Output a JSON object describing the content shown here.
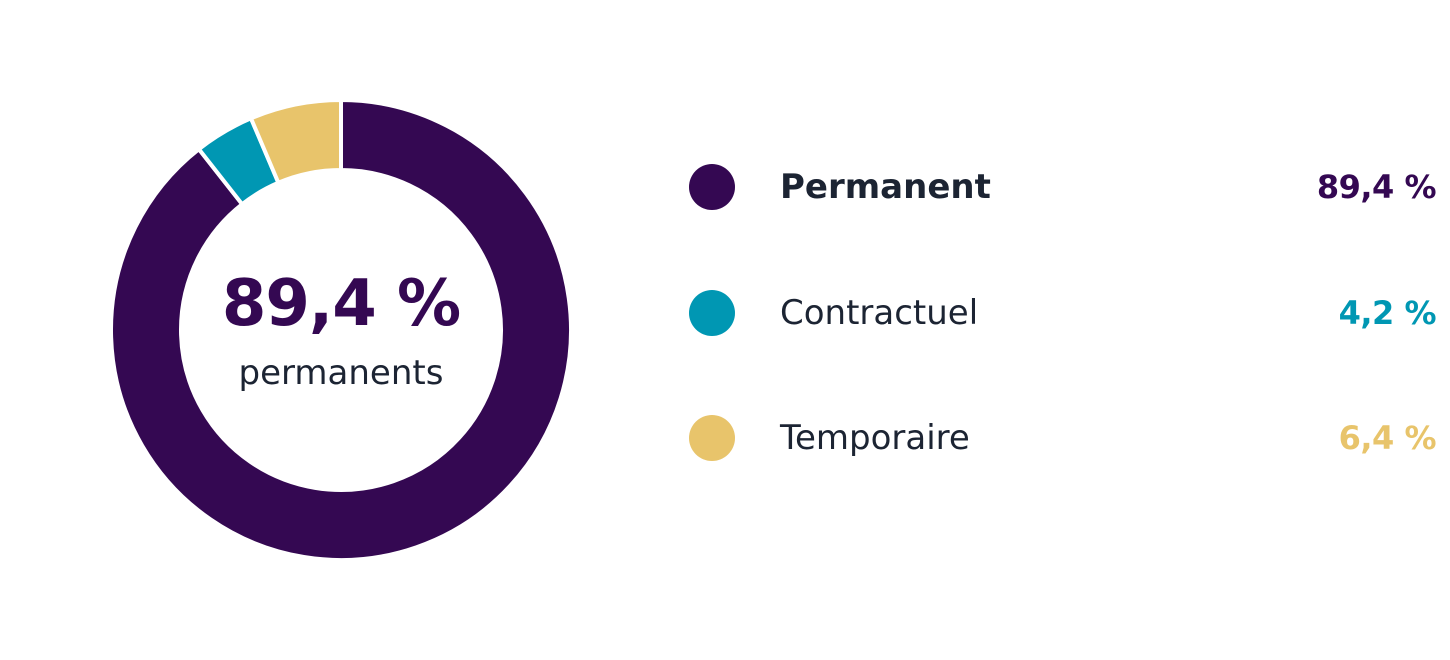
{
  "chart_data": {
    "type": "pie",
    "variant": "donut",
    "categories": [
      "Permanent",
      "Contractuel",
      "Temporaire"
    ],
    "values": [
      89.4,
      4.2,
      6.4
    ],
    "value_labels": [
      "89,4 %",
      "4,2 %",
      "6,4 %"
    ],
    "colors": [
      "#340852",
      "#0097b3",
      "#e8c46b"
    ],
    "center_value": "89,4 %",
    "center_label": "permanents",
    "legend_placement": "right"
  },
  "colors": {
    "text": "#1c2433",
    "background": "#ffffff",
    "separator": "#ffffff"
  }
}
